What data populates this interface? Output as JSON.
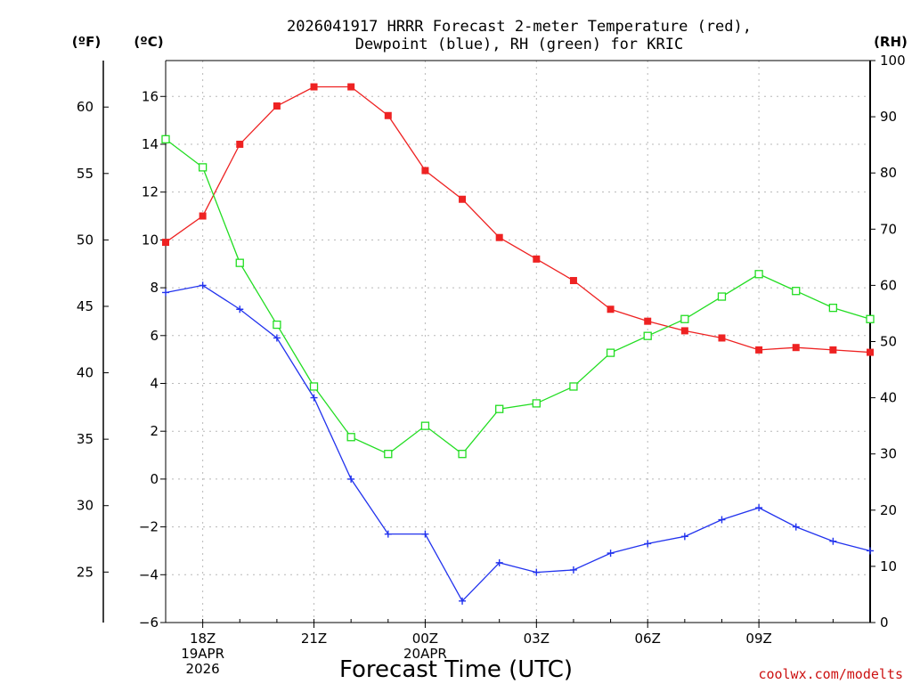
{
  "chart_data": {
    "type": "line",
    "title_line1": "2026041917 HRRR Forecast 2-meter Temperature (red),",
    "title_line2": "Dewpoint (blue), RH (green) for KRIC",
    "xlabel": "Forecast Time (UTC)",
    "unit_f": "(ºF)",
    "unit_c": "(ºC)",
    "unit_rh": "(RH)",
    "credit": "coolwx.com/modelts",
    "x_hours": [
      17,
      18,
      19,
      20,
      21,
      22,
      23,
      24,
      25,
      26,
      27,
      28,
      29,
      30,
      31,
      32,
      33,
      34,
      35,
      36
    ],
    "x_ticks": [
      {
        "hour": 18,
        "lines": [
          "18Z",
          "19APR",
          "2026"
        ]
      },
      {
        "hour": 21,
        "lines": [
          "21Z"
        ]
      },
      {
        "hour": 24,
        "lines": [
          "00Z",
          "20APR"
        ]
      },
      {
        "hour": 27,
        "lines": [
          "03Z"
        ]
      },
      {
        "hour": 30,
        "lines": [
          "06Z"
        ]
      },
      {
        "hour": 33,
        "lines": [
          "09Z"
        ]
      }
    ],
    "xlim": [
      17,
      36
    ],
    "ylim_c": [
      -6,
      17.5
    ],
    "yticks_c": [
      -6,
      -4,
      -2,
      0,
      2,
      4,
      6,
      8,
      10,
      12,
      14,
      16
    ],
    "yticks_f": [
      25,
      30,
      35,
      40,
      45,
      50,
      55,
      60
    ],
    "ylim_rh": [
      0,
      100
    ],
    "yticks_rh": [
      0,
      10,
      20,
      30,
      40,
      50,
      60,
      70,
      80,
      90,
      100
    ],
    "series": [
      {
        "name": "Temperature",
        "units": "C",
        "color": "#ee2222",
        "marker": "filled-square",
        "values": [
          9.9,
          11.0,
          14.0,
          15.6,
          16.4,
          16.4,
          15.2,
          12.9,
          11.7,
          10.1,
          9.2,
          8.3,
          7.1,
          6.6,
          6.2,
          5.9,
          5.4,
          5.5,
          5.4,
          5.3
        ]
      },
      {
        "name": "Dewpoint",
        "units": "C",
        "color": "#2233ee",
        "marker": "plus",
        "values": [
          7.8,
          8.1,
          7.1,
          5.9,
          3.4,
          0.0,
          -2.3,
          -2.3,
          -5.1,
          -3.5,
          -3.9,
          -3.8,
          -3.1,
          -2.7,
          -2.4,
          -1.7,
          -1.2,
          -2.0,
          -2.6,
          -3.0
        ]
      },
      {
        "name": "RH",
        "units": "%",
        "color": "#22dd22",
        "marker": "open-square",
        "values": [
          86,
          81,
          64,
          53,
          42,
          33,
          30,
          35,
          30,
          38,
          39,
          42,
          48,
          51,
          54,
          58,
          62,
          59,
          56,
          54
        ]
      }
    ]
  }
}
